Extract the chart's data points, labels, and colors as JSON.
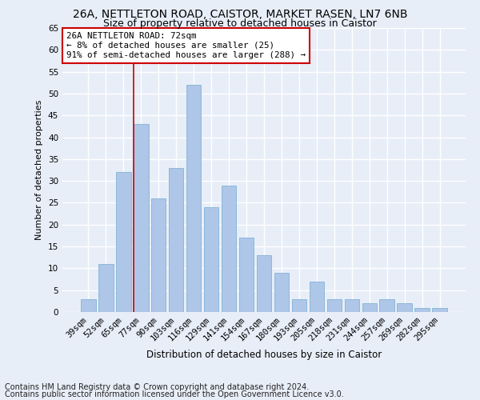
{
  "title1": "26A, NETTLETON ROAD, CAISTOR, MARKET RASEN, LN7 6NB",
  "title2": "Size of property relative to detached houses in Caistor",
  "xlabel": "Distribution of detached houses by size in Caistor",
  "ylabel": "Number of detached properties",
  "categories": [
    "39sqm",
    "52sqm",
    "65sqm",
    "77sqm",
    "90sqm",
    "103sqm",
    "116sqm",
    "129sqm",
    "141sqm",
    "154sqm",
    "167sqm",
    "180sqm",
    "193sqm",
    "205sqm",
    "218sqm",
    "231sqm",
    "244sqm",
    "257sqm",
    "269sqm",
    "282sqm",
    "295sqm"
  ],
  "values": [
    3,
    11,
    32,
    43,
    26,
    33,
    52,
    24,
    29,
    17,
    13,
    9,
    3,
    7,
    3,
    3,
    2,
    3,
    2,
    1,
    1
  ],
  "bar_color": "#aec6e8",
  "bar_edge_color": "#8db8d8",
  "highlight_x": "77sqm",
  "highlight_line_color": "#cc0000",
  "annotation_text": "26A NETTLETON ROAD: 72sqm\n← 8% of detached houses are smaller (25)\n91% of semi-detached houses are larger (288) →",
  "annotation_box_color": "#ffffff",
  "annotation_box_edge": "#cc0000",
  "ylim": [
    0,
    65
  ],
  "yticks": [
    0,
    5,
    10,
    15,
    20,
    25,
    30,
    35,
    40,
    45,
    50,
    55,
    60,
    65
  ],
  "bg_color": "#e8eef8",
  "plot_bg_color": "#e8eef8",
  "grid_color": "#ffffff",
  "footer1": "Contains HM Land Registry data © Crown copyright and database right 2024.",
  "footer2": "Contains public sector information licensed under the Open Government Licence v3.0.",
  "title1_fontsize": 10,
  "title2_fontsize": 9,
  "xlabel_fontsize": 8.5,
  "ylabel_fontsize": 8,
  "tick_fontsize": 7.5,
  "footer_fontsize": 7
}
